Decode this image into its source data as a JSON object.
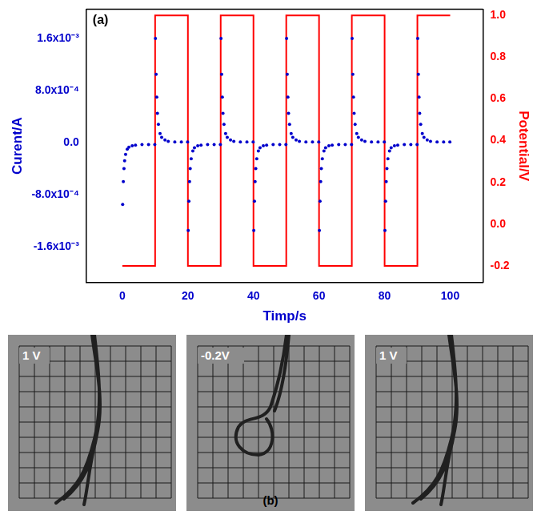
{
  "chart_data": {
    "type": "scatter",
    "title": "(a)",
    "x_label": "Timp/s",
    "y_label": "Curent/A",
    "y2_label": "Potential/V",
    "xlim": [
      -11,
      110
    ],
    "xticks": [
      0,
      20,
      40,
      60,
      80,
      100
    ],
    "ylim": [
      -0.00215,
      0.00205
    ],
    "yticks": [
      {
        "value": -0.0016,
        "label": "-1.6x10⁻³"
      },
      {
        "value": -0.0008,
        "label": "-8.0x10⁻⁴"
      },
      {
        "value": 0,
        "label": "0.0"
      },
      {
        "value": 0.0008,
        "label": "8.0x10⁻⁴"
      },
      {
        "value": 0.0016,
        "label": "1.6x10⁻³"
      }
    ],
    "y2lim": [
      -0.28,
      1.03
    ],
    "y2ticks": [
      -0.2,
      {
        "value": 0,
        "label": "0.0"
      },
      0.2,
      0.4,
      0.6,
      0.8,
      {
        "value": 1,
        "label": "1.0"
      }
    ],
    "grid": false,
    "series": [
      {
        "type": "scatter",
        "color": "#0000cc",
        "marker": "circle",
        "x": [
          0.1,
          0.3,
          0.5,
          0.7,
          1,
          1.5,
          2,
          3,
          4,
          6,
          8,
          9.9,
          10.1,
          10.3,
          10.5,
          10.7,
          11,
          11.5,
          12,
          13,
          14,
          16,
          18,
          19.9,
          20.1,
          20.3,
          20.5,
          20.7,
          21,
          21.5,
          22,
          23,
          24,
          26,
          28,
          29.9,
          30.1,
          30.3,
          30.5,
          30.7,
          31,
          31.5,
          32,
          33,
          34,
          36,
          38,
          39.9,
          40.1,
          40.3,
          40.5,
          40.7,
          41,
          41.5,
          42,
          43,
          44,
          46,
          48,
          49.9,
          50.1,
          50.3,
          50.5,
          50.7,
          51,
          51.5,
          52,
          53,
          54,
          56,
          58,
          59.9,
          60.1,
          60.3,
          60.5,
          60.7,
          61,
          61.5,
          62,
          63,
          64,
          66,
          68,
          69.9,
          70.1,
          70.3,
          70.5,
          70.7,
          71,
          71.5,
          72,
          73,
          74,
          76,
          78,
          79.9,
          80.1,
          80.3,
          80.5,
          80.7,
          81,
          81.5,
          82,
          83,
          84,
          86,
          88,
          89.9,
          90.1,
          90.3,
          90.5,
          90.7,
          91,
          91.5,
          92,
          93,
          94,
          96,
          98,
          99.9
        ],
        "values": [
          -0.00095,
          -0.0006,
          -0.0004,
          -0.00028,
          -0.00018,
          -0.0001,
          -7e-05,
          -5e-05,
          -4e-05,
          -3e-05,
          -3e-05,
          -3e-05,
          0.0016,
          0.00105,
          0.0007,
          0.00045,
          0.00028,
          0.00014,
          8e-05,
          4e-05,
          2e-05,
          1e-05,
          1e-05,
          1e-05,
          -0.00135,
          -0.0009,
          -0.0006,
          -0.0004,
          -0.00025,
          -0.00013,
          -8e-05,
          -5e-05,
          -4e-05,
          -3e-05,
          -3e-05,
          -3e-05,
          0.0016,
          0.00105,
          0.0007,
          0.00045,
          0.00028,
          0.00014,
          8e-05,
          4e-05,
          2e-05,
          1e-05,
          1e-05,
          1e-05,
          -0.00135,
          -0.0009,
          -0.0006,
          -0.0004,
          -0.00025,
          -0.00013,
          -8e-05,
          -5e-05,
          -4e-05,
          -3e-05,
          -3e-05,
          -3e-05,
          0.0016,
          0.00105,
          0.0007,
          0.00045,
          0.00028,
          0.00014,
          8e-05,
          4e-05,
          2e-05,
          1e-05,
          1e-05,
          1e-05,
          -0.00135,
          -0.0009,
          -0.0006,
          -0.0004,
          -0.00025,
          -0.00013,
          -8e-05,
          -5e-05,
          -4e-05,
          -3e-05,
          -3e-05,
          -3e-05,
          0.0016,
          0.00105,
          0.0007,
          0.00045,
          0.00028,
          0.00014,
          8e-05,
          4e-05,
          2e-05,
          1e-05,
          1e-05,
          1e-05,
          -0.00135,
          -0.0009,
          -0.0006,
          -0.0004,
          -0.00025,
          -0.00013,
          -8e-05,
          -5e-05,
          -4e-05,
          -3e-05,
          -3e-05,
          -3e-05,
          0.0016,
          0.00105,
          0.0007,
          0.00045,
          0.00028,
          0.00014,
          8e-05,
          4e-05,
          2e-05,
          1e-05,
          1e-05,
          1e-05
        ]
      },
      {
        "type": "line",
        "color": "#ff0000",
        "axis": "y2",
        "line_style": "solid",
        "x": [
          0,
          10,
          10,
          20,
          20,
          30,
          30,
          40,
          40,
          50,
          50,
          60,
          60,
          70,
          70,
          80,
          80,
          90,
          90,
          100
        ],
        "values": [
          -0.2,
          -0.2,
          1,
          1,
          -0.2,
          -0.2,
          1,
          1,
          -0.2,
          -0.2,
          1,
          1,
          -0.2,
          -0.2,
          1,
          1,
          -0.2,
          -0.2,
          1,
          1
        ]
      }
    ]
  },
  "panel_b": {
    "label": "(b)",
    "images": [
      {
        "label": "1 V"
      },
      {
        "label": "-0.2V"
      },
      {
        "label": "1 V"
      }
    ]
  }
}
